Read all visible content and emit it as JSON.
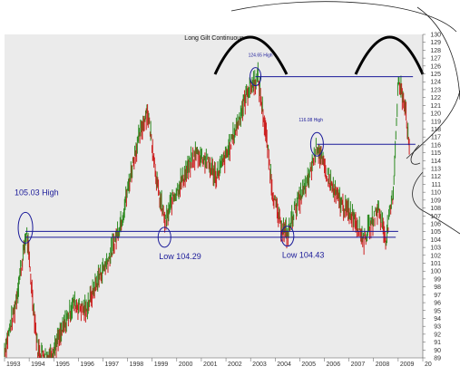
{
  "chart_data": {
    "type": "bar",
    "title": "Long Gilt Continuous",
    "xlabel": "",
    "ylabel": "",
    "x_range": [
      1993.0,
      2010.0
    ],
    "ylim": [
      89,
      130
    ],
    "grid": false,
    "legend": "none",
    "x_ticks": [
      "1993",
      "1994",
      "1995",
      "1996",
      "1997",
      "1998",
      "1999",
      "2000",
      "2001",
      "2002",
      "2003",
      "2004",
      "2005",
      "2006",
      "2007",
      "2008",
      "2009",
      "20"
    ],
    "y_ticks": [
      "89",
      "90",
      "91",
      "92",
      "93",
      "94",
      "95",
      "96",
      "97",
      "98",
      "99",
      "100",
      "101",
      "102",
      "103",
      "104",
      "105",
      "106",
      "107",
      "108",
      "109",
      "110",
      "111",
      "112",
      "113",
      "114",
      "115",
      "116",
      "117",
      "118",
      "119",
      "120",
      "121",
      "122",
      "123",
      "124",
      "125",
      "126",
      "127",
      "128",
      "129",
      "130"
    ],
    "colors": {
      "up": "#2e8b22",
      "down": "#cc1f1f",
      "annotation": "#1a1a99",
      "arch": "#000000",
      "background": "#ebebeb"
    },
    "price_path": [
      [
        1993.0,
        90
      ],
      [
        1993.4,
        95
      ],
      [
        1993.9,
        105
      ],
      [
        1994.1,
        98
      ],
      [
        1994.35,
        90
      ],
      [
        1994.8,
        89
      ],
      [
        1995.3,
        92
      ],
      [
        1995.8,
        96
      ],
      [
        1996.3,
        95
      ],
      [
        1996.8,
        99
      ],
      [
        1997.3,
        102
      ],
      [
        1997.8,
        107
      ],
      [
        1998.3,
        115
      ],
      [
        1998.8,
        120.5
      ],
      [
        1999.05,
        115
      ],
      [
        1999.25,
        110
      ],
      [
        1999.55,
        106
      ],
      [
        1999.8,
        109
      ],
      [
        2000.3,
        112
      ],
      [
        2000.8,
        115
      ],
      [
        2001.2,
        114
      ],
      [
        2001.6,
        112
      ],
      [
        2002.0,
        114.5
      ],
      [
        2002.4,
        118
      ],
      [
        2002.9,
        123
      ],
      [
        2003.3,
        124.5
      ],
      [
        2003.6,
        118
      ],
      [
        2003.9,
        110
      ],
      [
        2004.2,
        106
      ],
      [
        2004.5,
        104.5
      ],
      [
        2004.8,
        108
      ],
      [
        2005.3,
        111
      ],
      [
        2005.7,
        116
      ],
      [
        2006.0,
        113
      ],
      [
        2006.4,
        110
      ],
      [
        2006.8,
        108
      ],
      [
        2007.2,
        107
      ],
      [
        2007.6,
        104
      ],
      [
        2007.9,
        106
      ],
      [
        2008.2,
        108
      ],
      [
        2008.5,
        104
      ],
      [
        2008.8,
        110
      ],
      [
        2009.0,
        124
      ],
      [
        2009.3,
        121
      ],
      [
        2009.45,
        115
      ]
    ],
    "annotations": [
      {
        "label": "105.03 High",
        "x": 1993.85,
        "y": 105.03,
        "marker": "ellipse"
      },
      {
        "label": "Low 104.29",
        "x": 1999.5,
        "y": 104.29,
        "marker": "ellipse"
      },
      {
        "label": "Low 104.43",
        "x": 2004.5,
        "y": 104.43,
        "marker": "ellipse"
      },
      {
        "label": "124.65 High",
        "x": 2003.2,
        "y": 124.65,
        "marker": "ellipse"
      },
      {
        "label": "116.08 High",
        "x": 2005.7,
        "y": 116.08,
        "marker": "ellipse"
      }
    ],
    "horizontal_lines": [
      {
        "y": 105.03,
        "x_start": 1993.85,
        "x_end": 2009.0
      },
      {
        "y": 104.29,
        "x_start": 1993.85,
        "x_end": 2008.9
      },
      {
        "y": 124.65,
        "x_start": 2003.2,
        "x_end": 2009.6
      },
      {
        "y": 116.08,
        "x_start": 2005.7,
        "x_end": 2009.7
      }
    ]
  }
}
